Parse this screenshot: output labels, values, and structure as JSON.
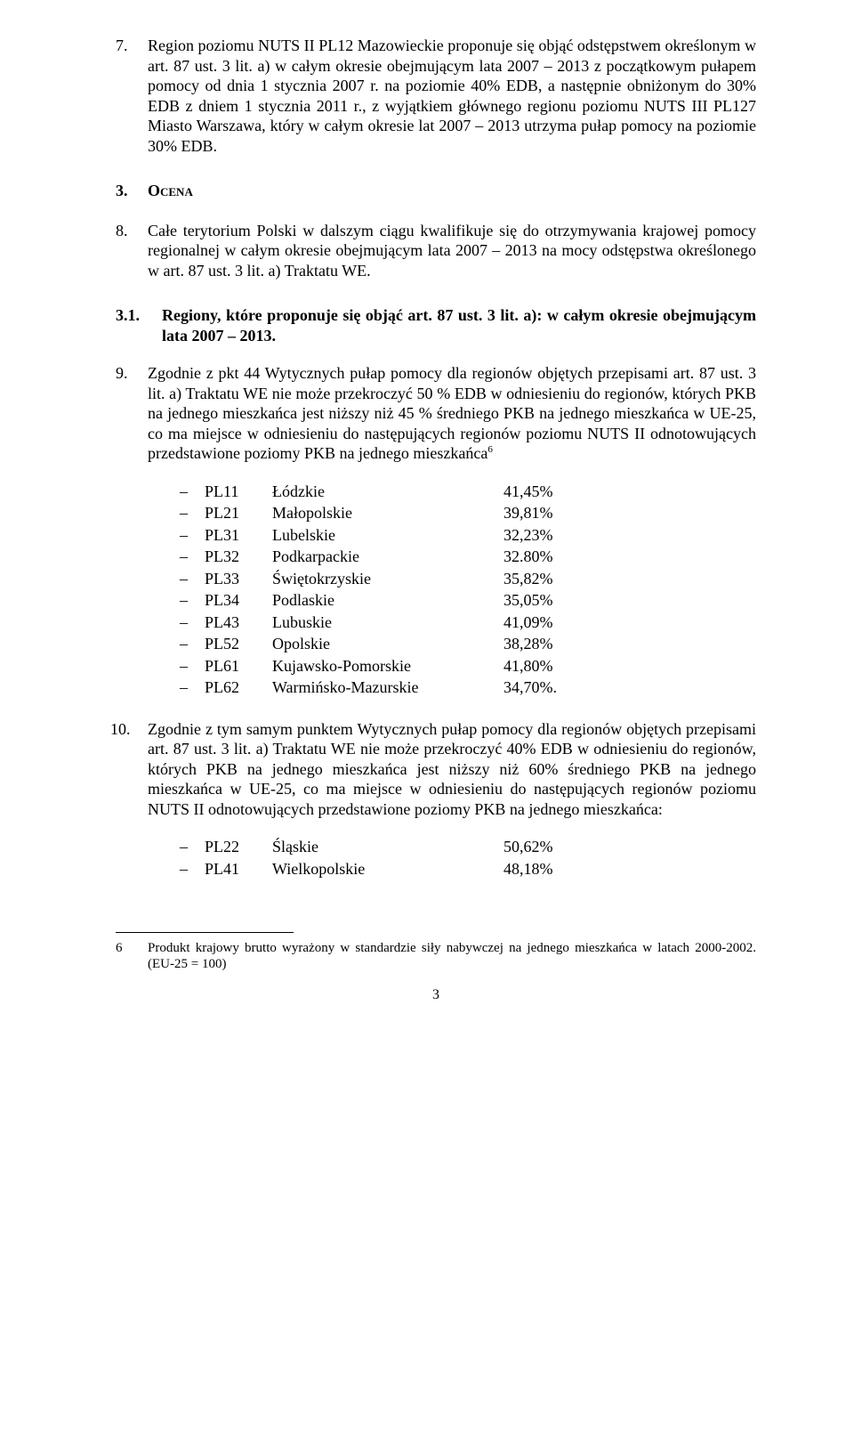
{
  "p7_num": "7.",
  "p7_text": "Region poziomu NUTS II PL12 Mazowieckie proponuje się objąć odstępstwem określonym w art. 87 ust. 3 lit. a) w całym okresie obejmującym lata 2007 – 2013 z początkowym pułapem pomocy od dnia 1 stycznia 2007 r. na poziomie 40% EDB, a następnie obniżonym do 30% EDB z dniem 1 stycznia 2011 r., z wyjątkiem głównego regionu poziomu NUTS III PL127 Miasto Warszawa, który w całym okresie lat 2007 – 2013 utrzyma pułap pomocy na poziomie 30% EDB.",
  "ocena_num": "3.",
  "ocena_label": "Ocena",
  "p8_num": "8.",
  "p8_text": "Całe terytorium Polski w dalszym ciągu kwalifikuje się do otrzymywania krajowej pomocy regionalnej w całym okresie obejmującym lata 2007 – 2013 na mocy odstępstwa określonego w art. 87 ust. 3 lit. a) Traktatu WE.",
  "sub31_num": "3.1.",
  "sub31_text": "Regiony, które proponuje się objąć art. 87 ust. 3 lit. a): w całym okresie obejmującym lata 2007 – 2013.",
  "p9_num": "9.",
  "p9_text_a": "Zgodnie z pkt 44 Wytycznych pułap pomocy dla regionów objętych przepisami art. 87 ust. 3 lit. a) Traktatu WE nie może przekroczyć 50 % EDB w odniesieniu do regionów, których PKB na jednego mieszkańca jest niższy niż 45 % średniego PKB na jednego mieszkańca w UE-25, co ma miejsce w odniesieniu do następujących regionów poziomu NUTS II odnotowujących przedstawione poziomy PKB na jednego mieszkańca",
  "p9_sup": "6",
  "list1": [
    {
      "code": "PL11",
      "name": "Łódzkie",
      "val": "41,45%"
    },
    {
      "code": "PL21",
      "name": "Małopolskie",
      "val": "39,81%"
    },
    {
      "code": "PL31",
      "name": "Lubelskie",
      "val": "32,23%"
    },
    {
      "code": "PL32",
      "name": "Podkarpackie",
      "val": "32.80%"
    },
    {
      "code": "PL33",
      "name": "Świętokrzyskie",
      "val": "35,82%"
    },
    {
      "code": "PL34",
      "name": "Podlaskie",
      "val": "35,05%"
    },
    {
      "code": "PL43",
      "name": "Lubuskie",
      "val": "41,09%"
    },
    {
      "code": "PL52",
      "name": "Opolskie",
      "val": "38,28%"
    },
    {
      "code": "PL61",
      "name": "Kujawsko-Pomorskie",
      "val": "41,80%"
    },
    {
      "code": "PL62",
      "name": "Warmińsko-Mazurskie",
      "val": "34,70%."
    }
  ],
  "p10_num": "10.",
  "p10_text": "Zgodnie z tym samym punktem Wytycznych pułap pomocy dla regionów objętych przepisami art. 87 ust. 3 lit. a) Traktatu WE nie może przekroczyć 40% EDB w odniesieniu do regionów, których PKB na jednego mieszkańca jest niższy niż 60% średniego PKB na jednego mieszkańca w UE-25, co ma miejsce w odniesieniu do następujących regionów poziomu NUTS II odnotowujących przedstawione poziomy PKB na jednego mieszkańca:",
  "list2": [
    {
      "code": "PL22",
      "name": "Śląskie",
      "val": "50,62%"
    },
    {
      "code": "PL41",
      "name": "Wielkopolskie",
      "val": "48,18%"
    }
  ],
  "footnote_num": "6",
  "footnote_text": "Produkt krajowy brutto wyrażony w standardzie siły nabywczej na jednego mieszkańca w latach 2000-2002. (EU-25 = 100)",
  "pagenum": "3"
}
